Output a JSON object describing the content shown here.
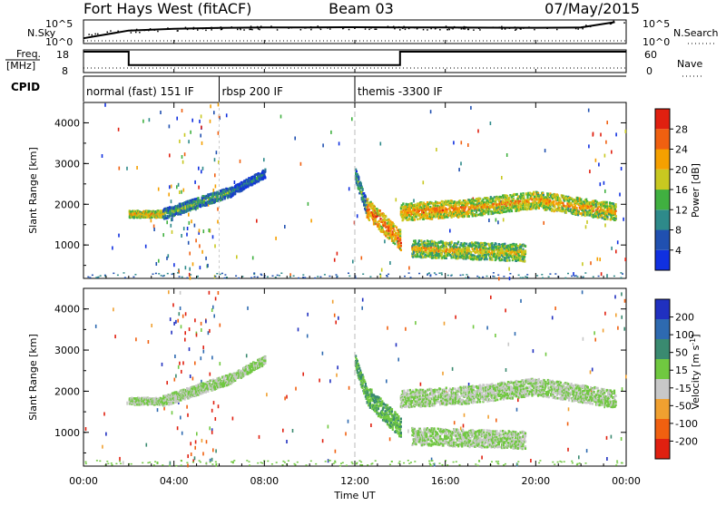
{
  "header": {
    "station": "Fort Hays West (fitACF)",
    "beam": "Beam 03",
    "date": "07/May/2015"
  },
  "strip_labels": {
    "nsky": "N.Sky",
    "nsky_ticks": [
      "10^5",
      "10^0"
    ],
    "nsearch": "N.Search",
    "nsearch_ticks": [
      "10^5",
      "10^0"
    ],
    "freq_line1": "Freq.",
    "freq_line2": "[MHz]",
    "freq_ticks": [
      "18",
      "8"
    ],
    "nave": "Nave",
    "nave_ticks": [
      "60",
      "0"
    ],
    "cpid": "CPID"
  },
  "cpid_segments": [
    {
      "label": "normal (fast) 151 IF",
      "start_h": 0
    },
    {
      "label": "rbsp 200 IF",
      "start_h": 6
    },
    {
      "label": "themis -3300 IF",
      "start_h": 12
    }
  ],
  "time_axis": {
    "label": "Time UT",
    "ticks": [
      "00:00",
      "04:00",
      "08:00",
      "12:00",
      "16:00",
      "20:00",
      "00:00"
    ],
    "range_h": [
      0,
      24
    ]
  },
  "range_axis": {
    "label": "Slant Range [km]",
    "ticks": [
      "1000",
      "2000",
      "3000",
      "4000"
    ],
    "range_km": [
      180,
      4500
    ]
  },
  "power_colorbar": {
    "label": "Power [dB]",
    "ticks": [
      "4",
      "8",
      "12",
      "16",
      "20",
      "24",
      "28"
    ],
    "colors": [
      "#1030e0",
      "#2050b0",
      "#2e8a8a",
      "#40b040",
      "#c8c820",
      "#f5a000",
      "#f06010",
      "#e02010"
    ]
  },
  "velocity_colorbar": {
    "label": "Velocity [m s",
    "label_sup": "-1",
    "label_end": "]",
    "ticks": [
      "200",
      "100",
      "50",
      "15",
      "-15",
      "-50",
      "-100",
      "-200"
    ],
    "colors": [
      "#2030c0",
      "#2e6ab0",
      "#3a8a70",
      "#70c840",
      "#c8c8c8",
      "#f0a030",
      "#f06010",
      "#e02010"
    ]
  },
  "chart_data": [
    {
      "type": "line",
      "title": "N.Sky / N.Search",
      "x": [
        0,
        2,
        4,
        6,
        8,
        10,
        12,
        14,
        16,
        18,
        20,
        22,
        23.5
      ],
      "series": [
        {
          "name": "N.Sky",
          "values": [
            10,
            600,
            1500,
            2500,
            3000,
            3200,
            3500,
            3200,
            3000,
            2800,
            2600,
            3000,
            50000
          ]
        }
      ],
      "ylim": [
        1,
        100000
      ]
    },
    {
      "type": "line",
      "title": "Freq. / Nave",
      "series": [
        {
          "name": "Freq.",
          "points": [
            [
              0,
              18
            ],
            [
              2,
              18
            ],
            [
              2,
              11
            ],
            [
              14,
              11
            ],
            [
              14,
              18
            ],
            [
              24,
              18
            ]
          ]
        },
        {
          "name": "Nave",
          "points": [
            [
              0,
              10
            ],
            [
              24,
              10
            ]
          ]
        }
      ],
      "ylim": [
        8,
        18
      ]
    },
    {
      "type": "heatmap",
      "title": "Power [dB]",
      "x_unit": "hour UT",
      "y_unit": "km",
      "features": [
        {
          "h0": 2.0,
          "h1": 3.5,
          "r0": 1750,
          "r1": 1750,
          "thick": 120,
          "value": 16
        },
        {
          "h0": 3.5,
          "h1": 6.5,
          "r0": 1750,
          "r1": 2300,
          "thick": 180,
          "value": 8
        },
        {
          "h0": 6.5,
          "h1": 8.0,
          "r0": 2300,
          "r1": 2750,
          "thick": 150,
          "value": 4
        },
        {
          "h0": 12.0,
          "h1": 12.5,
          "r0": 2700,
          "r1": 1900,
          "thick": 250,
          "value": 8
        },
        {
          "h0": 12.5,
          "h1": 14.0,
          "r0": 1900,
          "r1": 1100,
          "thick": 350,
          "value": 20
        },
        {
          "h0": 14.0,
          "h1": 17.0,
          "r0": 1800,
          "r1": 1900,
          "thick": 300,
          "value": 18
        },
        {
          "h0": 17.0,
          "h1": 20.0,
          "r0": 1900,
          "r1": 2100,
          "thick": 300,
          "value": 16
        },
        {
          "h0": 20.0,
          "h1": 23.5,
          "r0": 2100,
          "r1": 1800,
          "thick": 300,
          "value": 16
        },
        {
          "h0": 14.5,
          "h1": 19.5,
          "r0": 900,
          "r1": 800,
          "thick": 300,
          "value": 14
        }
      ]
    },
    {
      "type": "heatmap",
      "title": "Velocity [m s-1]",
      "x_unit": "hour UT",
      "y_unit": "km",
      "features": [
        {
          "h0": 2.0,
          "h1": 3.5,
          "r0": 1750,
          "r1": 1750,
          "thick": 120,
          "value": 0
        },
        {
          "h0": 3.5,
          "h1": 6.5,
          "r0": 1750,
          "r1": 2300,
          "thick": 180,
          "value": 0
        },
        {
          "h0": 6.5,
          "h1": 8.0,
          "r0": 2300,
          "r1": 2750,
          "thick": 150,
          "value": 0
        },
        {
          "h0": 12.0,
          "h1": 12.5,
          "r0": 2700,
          "r1": 1900,
          "thick": 250,
          "value": 30
        },
        {
          "h0": 12.5,
          "h1": 14.0,
          "r0": 1900,
          "r1": 1100,
          "thick": 350,
          "value": 30
        },
        {
          "h0": 14.0,
          "h1": 17.0,
          "r0": 1800,
          "r1": 1900,
          "thick": 300,
          "value": 0
        },
        {
          "h0": 17.0,
          "h1": 20.0,
          "r0": 1900,
          "r1": 2100,
          "thick": 300,
          "value": 0
        },
        {
          "h0": 20.0,
          "h1": 23.5,
          "r0": 2100,
          "r1": 1800,
          "thick": 300,
          "value": 0
        },
        {
          "h0": 14.5,
          "h1": 19.5,
          "r0": 900,
          "r1": 800,
          "thick": 300,
          "value": 0
        }
      ]
    }
  ]
}
